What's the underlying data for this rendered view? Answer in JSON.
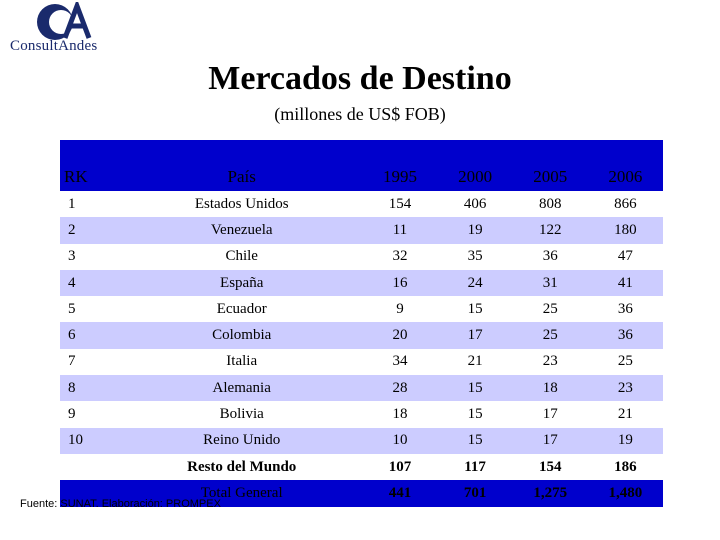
{
  "brand": {
    "name": "ConsultAndes",
    "mark": "CA"
  },
  "title": "Mercados de Destino",
  "subtitle": "(millones de US$ FOB)",
  "table": {
    "headers": [
      "RK",
      "País",
      "1995",
      "2000",
      "2005",
      "2006"
    ],
    "rows": [
      [
        "1",
        "Estados Unidos",
        "154",
        "406",
        "808",
        "866"
      ],
      [
        "2",
        "Venezuela",
        "11",
        "19",
        "122",
        "180"
      ],
      [
        "3",
        "Chile",
        "32",
        "35",
        "36",
        "47"
      ],
      [
        "4",
        "España",
        "16",
        "24",
        "31",
        "41"
      ],
      [
        "5",
        "Ecuador",
        "9",
        "15",
        "25",
        "36"
      ],
      [
        "6",
        "Colombia",
        "20",
        "17",
        "25",
        "36"
      ],
      [
        "7",
        "Italia",
        "34",
        "21",
        "23",
        "25"
      ],
      [
        "8",
        "Alemania",
        "28",
        "15",
        "18",
        "23"
      ],
      [
        "9",
        "Bolivia",
        "18",
        "15",
        "17",
        "21"
      ],
      [
        "10",
        "Reino Unido",
        "10",
        "15",
        "17",
        "19"
      ]
    ],
    "resto": [
      "Resto del Mundo",
      "107",
      "117",
      "154",
      "186"
    ],
    "total": [
      "Total General",
      "441",
      "701",
      "1,275",
      "1,480"
    ]
  },
  "footer": "Fuente: SUNAT.  Elaboración: PROMPEX",
  "colors": {
    "header_bg": "#0000cc",
    "band": "#ccccff",
    "brand": "#1a2a6c"
  }
}
